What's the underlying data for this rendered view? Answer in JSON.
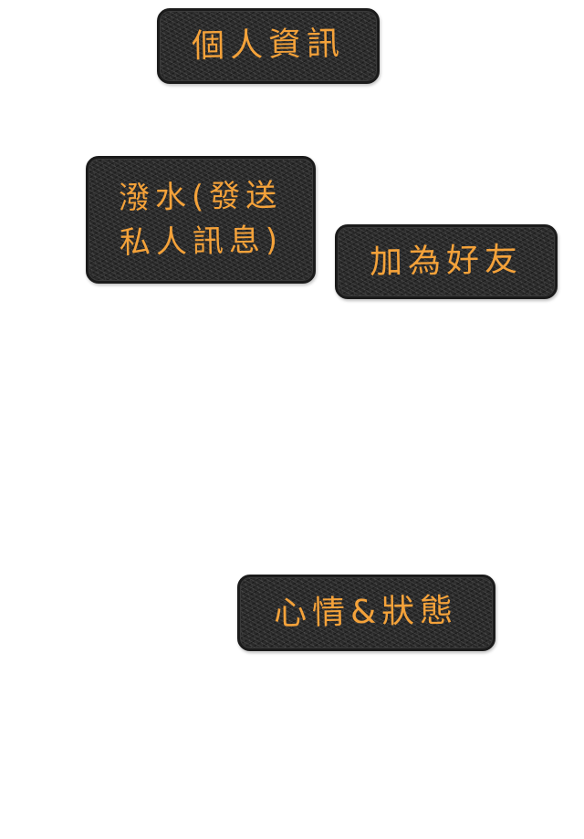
{
  "colors": {
    "label_text": "#f4a23a",
    "tag_fill": "#2a2a2a"
  },
  "tags": {
    "profile": {
      "label": "個人資訊"
    },
    "splash": {
      "label": "潑水(發送私人訊息)"
    },
    "friend": {
      "label": "加為好友"
    },
    "mood": {
      "label": "心情&狀態"
    }
  }
}
